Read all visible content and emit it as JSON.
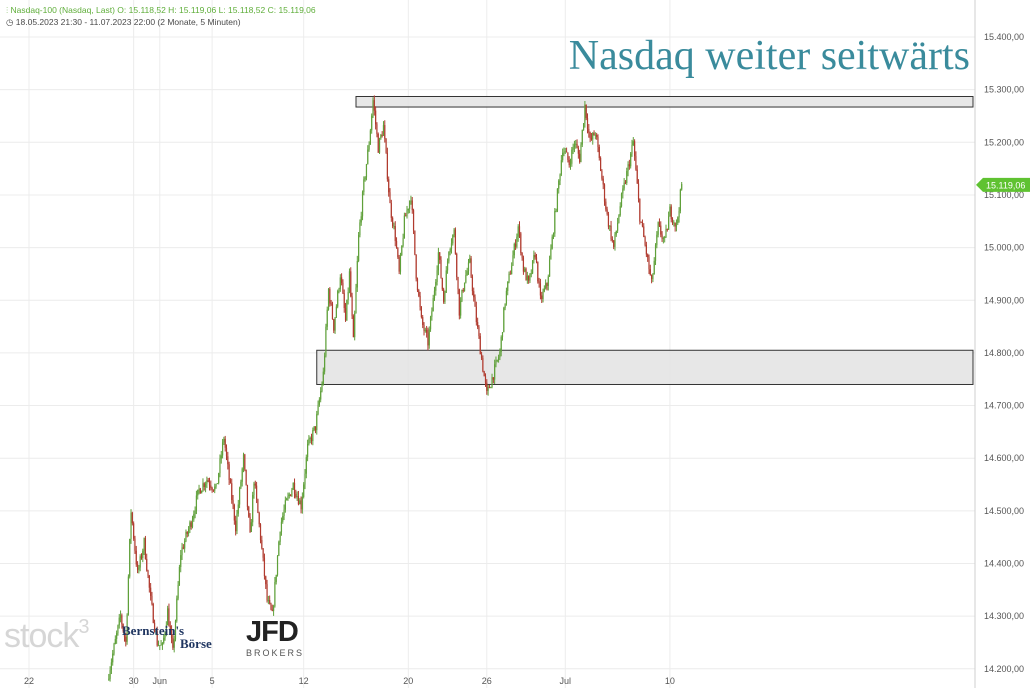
{
  "header": {
    "instrument": "Nasdaq-100 (Nasdaq, Last)",
    "ohlc": "O: 15.118,52  H: 15.119,06  L: 15.118,52  C: 15.119,06",
    "range": "18.05.2023 21:30 - 11.07.2023 22:00   (2 Monate, 5 Minuten)"
  },
  "title": "Nasdaq weiter seitwärts",
  "logos": {
    "stock": "stock",
    "stock_sup": "3",
    "bernstein1": "Bernstein's",
    "bernstein2": "Börse",
    "jfd": "JFD",
    "jfd_sub": "BROKERS"
  },
  "colors": {
    "up": "#5fa03a",
    "down": "#b03a2e",
    "accent": "#5fc231",
    "title": "#3a8b9c",
    "zone_fill": "#e3e3e3",
    "zone_stroke": "#333333"
  },
  "chart_data": {
    "type": "candlestick",
    "title": "Nasdaq weiter seitwärts",
    "y_axis": {
      "position": "right",
      "ylim": [
        14190,
        15460
      ],
      "ticks": [
        14200,
        14300,
        14400,
        14500,
        14600,
        14700,
        14800,
        14900,
        15000,
        15100,
        15200,
        15300,
        15400
      ],
      "tick_labels": [
        "14.200,00",
        "14.300,00",
        "14.400,00",
        "14.500,00",
        "14.600,00",
        "14.700,00",
        "14.800,00",
        "14.900,00",
        "15.000,00",
        "15.100,00",
        "15.200,00",
        "15.300,00",
        "15.400,00"
      ]
    },
    "x_axis": {
      "ticks": [
        {
          "label": "22",
          "day": 0
        },
        {
          "label": "30",
          "day": 8
        },
        {
          "label": "Jun",
          "day": 10
        },
        {
          "label": "5",
          "day": 14
        },
        {
          "label": "12",
          "day": 21
        },
        {
          "label": "20",
          "day": 29
        },
        {
          "label": "26",
          "day": 35
        },
        {
          "label": "Jul",
          "day": 41
        },
        {
          "label": "10",
          "day": 49
        }
      ]
    },
    "grid": true,
    "last_price": {
      "value": 15119.06,
      "label": "15.119,06"
    },
    "zones": [
      {
        "name": "resistance",
        "from": 15267,
        "to": 15287,
        "start_day": 25
      },
      {
        "name": "support",
        "from": 14740,
        "to": 14805,
        "start_day": 22
      }
    ],
    "path": [
      {
        "day": 6,
        "v": 14180
      },
      {
        "day": 7,
        "v": 14300
      },
      {
        "day": 7.4,
        "v": 14250
      },
      {
        "day": 7.8,
        "v": 14500
      },
      {
        "day": 8.3,
        "v": 14380
      },
      {
        "day": 8.8,
        "v": 14440
      },
      {
        "day": 9.3,
        "v": 14330
      },
      {
        "day": 9.8,
        "v": 14250
      },
      {
        "day": 10.2,
        "v": 14240
      },
      {
        "day": 10.6,
        "v": 14310
      },
      {
        "day": 11,
        "v": 14230
      },
      {
        "day": 11.6,
        "v": 14420
      },
      {
        "day": 12.4,
        "v": 14480
      },
      {
        "day": 13,
        "v": 14540
      },
      {
        "day": 13.6,
        "v": 14560
      },
      {
        "day": 14.3,
        "v": 14540
      },
      {
        "day": 14.9,
        "v": 14640
      },
      {
        "day": 15.3,
        "v": 14560
      },
      {
        "day": 15.8,
        "v": 14470
      },
      {
        "day": 16.4,
        "v": 14600
      },
      {
        "day": 16.9,
        "v": 14450
      },
      {
        "day": 17.2,
        "v": 14560
      },
      {
        "day": 17.7,
        "v": 14450
      },
      {
        "day": 18.2,
        "v": 14330
      },
      {
        "day": 18.6,
        "v": 14300
      },
      {
        "day": 19.2,
        "v": 14470
      },
      {
        "day": 19.6,
        "v": 14510
      },
      {
        "day": 20.2,
        "v": 14550
      },
      {
        "day": 20.8,
        "v": 14510
      },
      {
        "day": 21.3,
        "v": 14620
      },
      {
        "day": 21.9,
        "v": 14660
      },
      {
        "day": 22.5,
        "v": 14760
      },
      {
        "day": 22.9,
        "v": 14920
      },
      {
        "day": 23.3,
        "v": 14850
      },
      {
        "day": 23.8,
        "v": 14950
      },
      {
        "day": 24.2,
        "v": 14860
      },
      {
        "day": 24.5,
        "v": 14950
      },
      {
        "day": 24.8,
        "v": 14820
      },
      {
        "day": 25.2,
        "v": 15020
      },
      {
        "day": 25.6,
        "v": 15120
      },
      {
        "day": 26,
        "v": 15200
      },
      {
        "day": 26.3,
        "v": 15280
      },
      {
        "day": 26.7,
        "v": 15190
      },
      {
        "day": 27.1,
        "v": 15230
      },
      {
        "day": 27.6,
        "v": 15080
      },
      {
        "day": 28,
        "v": 15020
      },
      {
        "day": 28.3,
        "v": 14950
      },
      {
        "day": 28.7,
        "v": 15050
      },
      {
        "day": 29.2,
        "v": 15100
      },
      {
        "day": 29.6,
        "v": 14950
      },
      {
        "day": 30,
        "v": 14860
      },
      {
        "day": 30.5,
        "v": 14820
      },
      {
        "day": 30.9,
        "v": 14900
      },
      {
        "day": 31.3,
        "v": 14990
      },
      {
        "day": 31.7,
        "v": 14900
      },
      {
        "day": 32.1,
        "v": 15000
      },
      {
        "day": 32.5,
        "v": 15030
      },
      {
        "day": 32.9,
        "v": 14880
      },
      {
        "day": 33.3,
        "v": 14940
      },
      {
        "day": 33.7,
        "v": 14970
      },
      {
        "day": 34.1,
        "v": 14880
      },
      {
        "day": 34.6,
        "v": 14790
      },
      {
        "day": 35,
        "v": 14720
      },
      {
        "day": 35.5,
        "v": 14760
      },
      {
        "day": 36,
        "v": 14800
      },
      {
        "day": 36.4,
        "v": 14900
      },
      {
        "day": 36.9,
        "v": 14970
      },
      {
        "day": 37.4,
        "v": 15040
      },
      {
        "day": 37.8,
        "v": 14960
      },
      {
        "day": 38.2,
        "v": 14930
      },
      {
        "day": 38.7,
        "v": 14990
      },
      {
        "day": 39.1,
        "v": 14900
      },
      {
        "day": 39.6,
        "v": 14930
      },
      {
        "day": 40.3,
        "v": 15080
      },
      {
        "day": 40.8,
        "v": 15190
      },
      {
        "day": 41.3,
        "v": 15160
      },
      {
        "day": 41.7,
        "v": 15200
      },
      {
        "day": 42.1,
        "v": 15170
      },
      {
        "day": 42.5,
        "v": 15270
      },
      {
        "day": 42.9,
        "v": 15200
      },
      {
        "day": 43.3,
        "v": 15220
      },
      {
        "day": 44.2,
        "v": 15060
      },
      {
        "day": 44.7,
        "v": 15000
      },
      {
        "day": 45.2,
        "v": 15080
      },
      {
        "day": 45.7,
        "v": 15140
      },
      {
        "day": 46.2,
        "v": 15200
      },
      {
        "day": 46.7,
        "v": 15060
      },
      {
        "day": 47.2,
        "v": 14990
      },
      {
        "day": 47.6,
        "v": 14930
      },
      {
        "day": 48.1,
        "v": 15040
      },
      {
        "day": 48.6,
        "v": 15010
      },
      {
        "day": 49,
        "v": 15070
      },
      {
        "day": 49.5,
        "v": 15040
      },
      {
        "day": 49.9,
        "v": 15119
      }
    ]
  }
}
